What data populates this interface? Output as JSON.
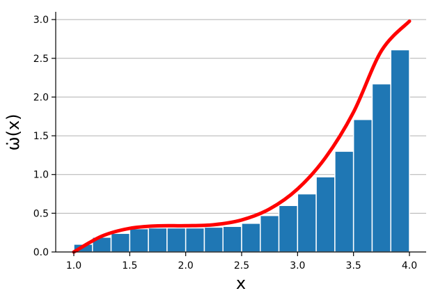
{
  "chart_data": {
    "type": "bar",
    "title": "",
    "xlabel": "x",
    "ylabel": "ω̇(x)",
    "xlim": [
      0.85,
      4.15
    ],
    "ylim": [
      0,
      3.1
    ],
    "xticks": [
      1.0,
      1.5,
      2.0,
      2.5,
      3.0,
      3.5,
      4.0
    ],
    "xtick_labels": [
      "1.0",
      "1.5",
      "2.0",
      "2.5",
      "3.0",
      "3.5",
      "4.0"
    ],
    "yticks": [
      0.0,
      0.5,
      1.0,
      1.5,
      2.0,
      2.5,
      3.0
    ],
    "ytick_labels": [
      "0.0",
      "0.5",
      "1.0",
      "1.5",
      "2.0",
      "2.5",
      "3.0"
    ],
    "grid": {
      "y": true,
      "x": false
    },
    "bar_color": "#1f77b4",
    "bar_edge_color": "#ffffff",
    "curve_color": "#ff0000",
    "bins": {
      "edges": [
        1.0,
        1.1667,
        1.3333,
        1.5,
        1.6667,
        1.8333,
        2.0,
        2.1667,
        2.3333,
        2.5,
        2.6667,
        2.8333,
        3.0,
        3.1667,
        3.3333,
        3.5,
        3.6667,
        3.8333,
        4.0
      ],
      "values": [
        0.1,
        0.19,
        0.24,
        0.3,
        0.31,
        0.31,
        0.31,
        0.32,
        0.33,
        0.37,
        0.47,
        0.6,
        0.75,
        0.97,
        1.3,
        1.71,
        2.17,
        2.61
      ]
    },
    "curve": {
      "x": [
        1.0,
        1.25,
        1.5,
        1.75,
        2.0,
        2.25,
        2.5,
        2.75,
        3.0,
        3.25,
        3.5,
        3.75,
        4.0
      ],
      "y": [
        0.0,
        0.204,
        0.305,
        0.337,
        0.339,
        0.352,
        0.413,
        0.555,
        0.813,
        1.219,
        1.805,
        2.598,
        2.979
      ]
    }
  }
}
